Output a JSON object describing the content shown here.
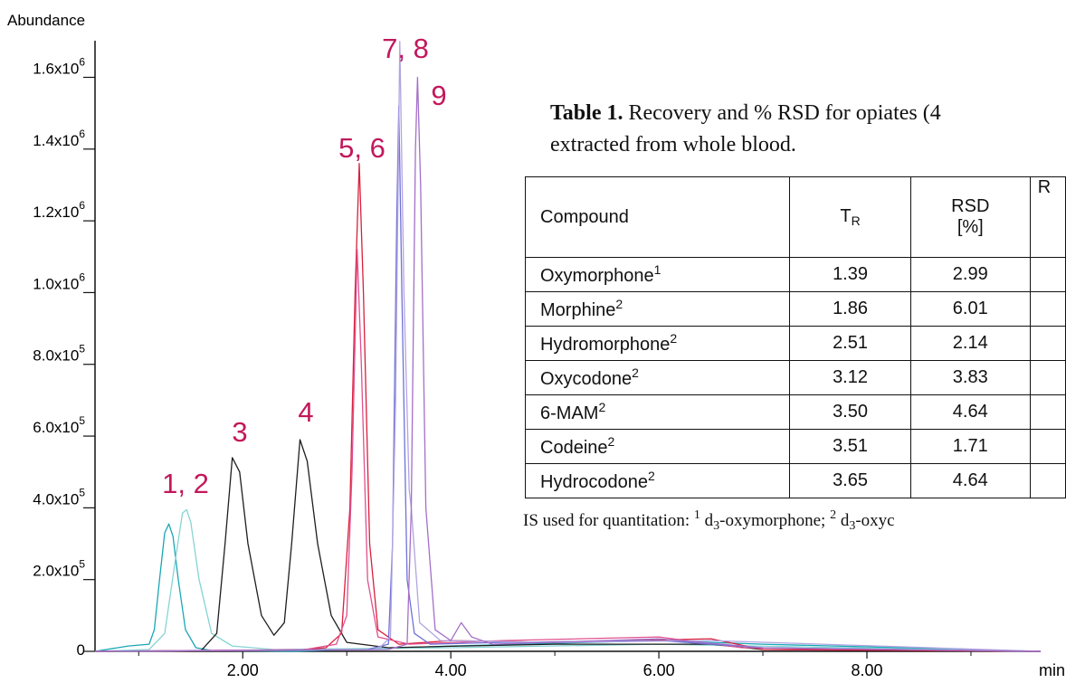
{
  "chart_data": {
    "type": "line",
    "y_label": "Abundance",
    "x_label": "min",
    "xlim": [
      0.58,
      9.67
    ],
    "xticks": [
      {
        "value": 2,
        "label": "2.00"
      },
      {
        "value": 4,
        "label": "4.00"
      },
      {
        "value": 6,
        "label": "6.00"
      },
      {
        "value": 8,
        "label": "8.00"
      }
    ],
    "x_minor_ticks": [
      1,
      3,
      5,
      7,
      9
    ],
    "ylim": [
      0,
      1750000
    ],
    "yticks": [
      0,
      {
        "value": 200000,
        "label": "2.0x10",
        "exp": "5"
      },
      {
        "value": 400000,
        "label": "4.0x10",
        "exp": "5"
      },
      {
        "value": 600000,
        "label": "6.0x10",
        "exp": "5"
      },
      {
        "value": 800000,
        "label": "8.0x10",
        "exp": "5"
      },
      {
        "value": 1000000,
        "label": "1.0x10",
        "exp": "6"
      },
      {
        "value": 1200000,
        "label": "1.2x10",
        "exp": "6"
      },
      {
        "value": 1400000,
        "label": "1.4x10",
        "exp": "6"
      },
      {
        "value": 1600000,
        "label": "1.6x10",
        "exp": "6"
      }
    ],
    "annotations": [
      "1, 2",
      "3",
      "4",
      "5, 6",
      "7, 8",
      "9"
    ],
    "annotation_color": "#c2185b",
    "series": [
      {
        "color": "#1aa6b5",
        "x": [
          0.58,
          0.9,
          1.1,
          1.15,
          1.2,
          1.25,
          1.29,
          1.33,
          1.38,
          1.45,
          1.55,
          1.7,
          2.5,
          4.0,
          6.0,
          7.0,
          9.67
        ],
        "values": [
          0,
          15000,
          20000,
          60000,
          200000,
          330000,
          355000,
          320000,
          200000,
          60000,
          10000,
          2000,
          0,
          15000,
          30000,
          20000,
          0
        ]
      },
      {
        "color": "#86d4d4",
        "x": [
          0.58,
          1.1,
          1.25,
          1.35,
          1.42,
          1.46,
          1.5,
          1.58,
          1.7,
          1.9,
          2.3,
          4.0,
          6.0,
          9.67
        ],
        "values": [
          0,
          5000,
          50000,
          250000,
          385000,
          395000,
          360000,
          200000,
          50000,
          15000,
          5000,
          10000,
          20000,
          0
        ]
      },
      {
        "color": "#1e1e1e",
        "x": [
          0.58,
          1.6,
          1.75,
          1.83,
          1.9,
          1.97,
          2.05,
          2.18,
          2.3,
          2.4,
          2.47,
          2.55,
          2.62,
          2.72,
          2.85,
          3.0,
          3.4,
          4.1,
          5.0,
          6.5,
          7.0,
          9.67
        ],
        "values": [
          0,
          2000,
          50000,
          300000,
          540000,
          500000,
          300000,
          100000,
          45000,
          80000,
          300000,
          590000,
          530000,
          300000,
          100000,
          25000,
          10000,
          15000,
          20000,
          20000,
          5000,
          0
        ]
      },
      {
        "color": "#d8203c",
        "x": [
          0.58,
          2.5,
          2.8,
          2.95,
          3.03,
          3.08,
          3.12,
          3.16,
          3.22,
          3.3,
          3.5,
          4.0,
          5.0,
          6.5,
          7.0,
          9.67
        ],
        "values": [
          0,
          3000,
          10000,
          50000,
          400000,
          1000000,
          1360000,
          1000000,
          300000,
          60000,
          20000,
          30000,
          25000,
          35000,
          5000,
          0
        ]
      },
      {
        "color": "#e0508f",
        "x": [
          0.58,
          2.6,
          2.9,
          3.0,
          3.05,
          3.1,
          3.14,
          3.2,
          3.3,
          3.6,
          4.5,
          6.0,
          6.8,
          9.67
        ],
        "values": [
          0,
          5000,
          20000,
          100000,
          500000,
          1120000,
          800000,
          200000,
          40000,
          20000,
          30000,
          40000,
          10000,
          0
        ]
      },
      {
        "color": "#6f72d6",
        "x": [
          0.58,
          3.2,
          3.4,
          3.44,
          3.48,
          3.5,
          3.53,
          3.58,
          3.65,
          3.8,
          4.5,
          6.0,
          7.0,
          9.67
        ],
        "values": [
          0,
          5000,
          20000,
          300000,
          1200000,
          1520000,
          1000000,
          200000,
          50000,
          20000,
          25000,
          30000,
          10000,
          0
        ]
      },
      {
        "color": "#b2a4e2",
        "x": [
          0.58,
          3.3,
          3.42,
          3.47,
          3.51,
          3.55,
          3.6,
          3.62,
          3.7,
          3.9,
          5.0,
          6.5,
          9.67
        ],
        "values": [
          0,
          5000,
          40000,
          700000,
          1700000,
          1000000,
          450000,
          400000,
          80000,
          30000,
          25000,
          30000,
          0
        ]
      },
      {
        "color": "#a46fc8",
        "x": [
          0.58,
          3.4,
          3.58,
          3.62,
          3.66,
          3.68,
          3.71,
          3.76,
          3.85,
          4.0,
          4.1,
          4.2,
          4.4,
          6.0,
          7.0,
          9.67
        ],
        "values": [
          0,
          5000,
          20000,
          400000,
          1400000,
          1600000,
          1300000,
          400000,
          60000,
          30000,
          80000,
          40000,
          20000,
          35000,
          10000,
          0
        ]
      }
    ]
  },
  "table": {
    "title_bold": "Table 1.",
    "title": "Recovery and % RSD for opiates (4",
    "title_line2": "extracted from whole blood.",
    "header": {
      "compound": "Compound",
      "tr": "T",
      "tr_sub": "R",
      "rsd": "RSD",
      "rsd_unit": "[%]",
      "cut": "R"
    },
    "rows": [
      [
        "Oxymorphone",
        "1",
        "1.39",
        "2.99"
      ],
      [
        "Morphine",
        "2",
        "1.86",
        "6.01"
      ],
      [
        "Hydromorphone",
        "2",
        "2.51",
        "2.14"
      ],
      [
        "Oxycodone",
        "2",
        "3.12",
        "3.83"
      ],
      [
        "6-MAM",
        "2",
        "3.50",
        "4.64"
      ],
      [
        "Codeine",
        "2",
        "3.51",
        "1.71"
      ],
      [
        "Hydrocodone",
        "2",
        "3.65",
        "4.64"
      ]
    ],
    "footnote": [
      {
        "text": "IS used for quantitation: ",
        "pos": "base"
      },
      {
        "text": "1",
        "pos": "sup"
      },
      {
        "text": " d",
        "pos": "base"
      },
      {
        "text": "3",
        "pos": "sub"
      },
      {
        "text": "-oxymorphone; ",
        "pos": "base"
      },
      {
        "text": "2",
        "pos": "sup"
      },
      {
        "text": " d",
        "pos": "base"
      },
      {
        "text": "3",
        "pos": "sub"
      },
      {
        "text": "-oxyc",
        "pos": "base"
      }
    ]
  }
}
